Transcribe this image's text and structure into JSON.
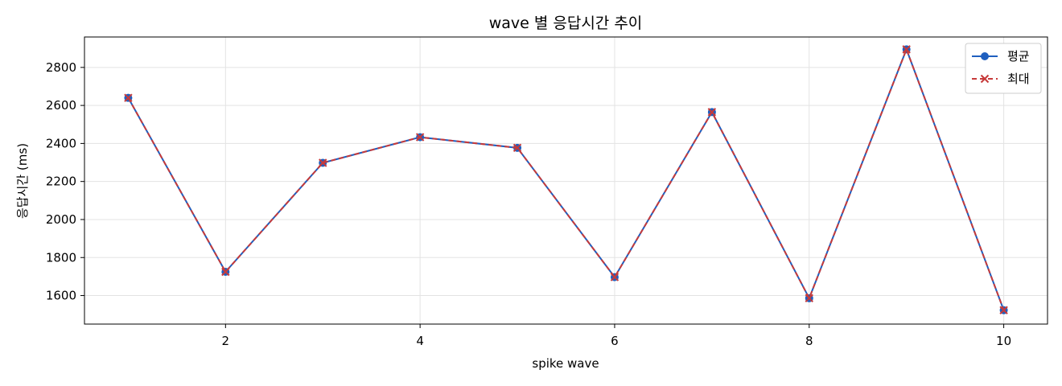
{
  "chart_data": {
    "type": "line",
    "title": "wave 별 응답시간 추이",
    "xlabel": "spike wave",
    "ylabel": "응답시간 (ms)",
    "x": [
      1,
      2,
      3,
      4,
      5,
      6,
      7,
      8,
      9,
      10
    ],
    "xlim": [
      0.55,
      10.45
    ],
    "ylim": [
      1450,
      2960
    ],
    "xticks": [
      2,
      4,
      6,
      8,
      10
    ],
    "yticks": [
      1600,
      1800,
      2000,
      2200,
      2400,
      2600,
      2800
    ],
    "grid": true,
    "legend_position": "top-right",
    "series": [
      {
        "name": "평균",
        "values": [
          2640,
          1725,
          2298,
          2433,
          2377,
          1697,
          2565,
          1586,
          2895,
          1523
        ],
        "color": "#1f5fbf",
        "marker": "circle",
        "linestyle": "solid"
      },
      {
        "name": "최대",
        "values": [
          2640,
          1725,
          2298,
          2433,
          2377,
          1697,
          2565,
          1586,
          2895,
          1523
        ],
        "color": "#c73a3a",
        "marker": "x",
        "linestyle": "dashed"
      }
    ]
  }
}
